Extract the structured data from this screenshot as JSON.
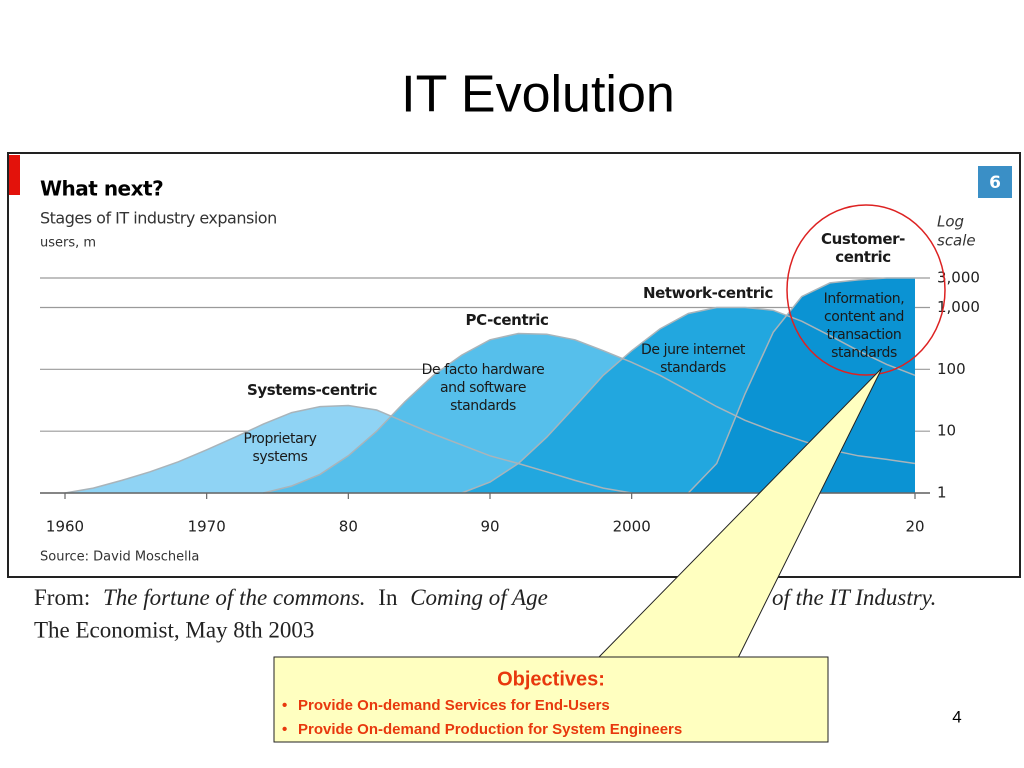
{
  "slide": {
    "title": "IT Evolution",
    "citation": {
      "line1": [
        "From:",
        "The fortune of the commons.",
        "In",
        "Coming of Age",
        "y of the IT Industry."
      ],
      "line2": "The Economist, May 8th 2003"
    },
    "callout": {
      "heading": "Objectives:",
      "bullets": [
        "Provide On-demand Services for End-Users",
        "Provide On-demand Production for System Engineers"
      ]
    },
    "page_number": "4"
  },
  "chart_data": {
    "type": "area",
    "title": "What next?",
    "subtitle": "Stages of IT industry expansion",
    "y_label": "users, m",
    "scale_note": [
      "Log",
      "scale"
    ],
    "badge": "6",
    "source": "Source: David Moschella",
    "log_scale": true,
    "grid": true,
    "xlim": [
      1960,
      2020
    ],
    "xticks": [
      1960,
      1970,
      {
        "value": 1980,
        "label": "80"
      },
      {
        "value": 1990,
        "label": "90"
      },
      2000,
      {
        "value": 2020,
        "label": "20"
      }
    ],
    "ylim": [
      1,
      3000
    ],
    "yticks": [
      1,
      10,
      100,
      {
        "value": 1000,
        "label": "1,000"
      },
      {
        "value": 3000,
        "label": "3,000"
      }
    ],
    "x": [
      1960,
      1962,
      1964,
      1966,
      1968,
      1970,
      1972,
      1974,
      1976,
      1978,
      1980,
      1982,
      1984,
      1986,
      1988,
      1990,
      1992,
      1994,
      1996,
      1998,
      2000,
      2002,
      2004,
      2006,
      2008,
      2010,
      2012,
      2014,
      2016,
      2018,
      2020
    ],
    "series": [
      {
        "name": "Systems-centric",
        "description": "Proprietary systems",
        "color": "#8fd3f4",
        "values": [
          1,
          1.2,
          1.6,
          2.2,
          3.2,
          5,
          8,
          13,
          20,
          25,
          26,
          22,
          14,
          9,
          6,
          4,
          3,
          2.2,
          1.6,
          1.2,
          1,
          null,
          null,
          null,
          null,
          null,
          null,
          null,
          null,
          null,
          null
        ]
      },
      {
        "name": "PC-centric",
        "description": "De facto hardware and software standards",
        "color": "#56bfeb",
        "values": [
          null,
          null,
          null,
          null,
          null,
          null,
          null,
          1,
          1.3,
          2,
          4,
          10,
          30,
          80,
          170,
          300,
          380,
          370,
          300,
          200,
          130,
          80,
          45,
          25,
          15,
          10,
          7,
          5,
          4,
          3.5,
          3
        ]
      },
      {
        "name": "Network-centric",
        "description": "De jure internet standards",
        "color": "#22a7df",
        "values": [
          null,
          null,
          null,
          null,
          null,
          null,
          null,
          null,
          null,
          null,
          null,
          null,
          null,
          null,
          1,
          1.5,
          3,
          8,
          25,
          80,
          200,
          450,
          800,
          1000,
          1000,
          900,
          600,
          350,
          200,
          120,
          80
        ]
      },
      {
        "name": "Customer-centric",
        "description": "Information, content and transaction standards",
        "color": "#0b93d3",
        "values": [
          null,
          null,
          null,
          null,
          null,
          null,
          null,
          null,
          null,
          null,
          null,
          null,
          null,
          null,
          null,
          null,
          null,
          null,
          null,
          null,
          null,
          null,
          1,
          3,
          40,
          400,
          1500,
          2500,
          2800,
          3000,
          3000
        ]
      }
    ]
  }
}
